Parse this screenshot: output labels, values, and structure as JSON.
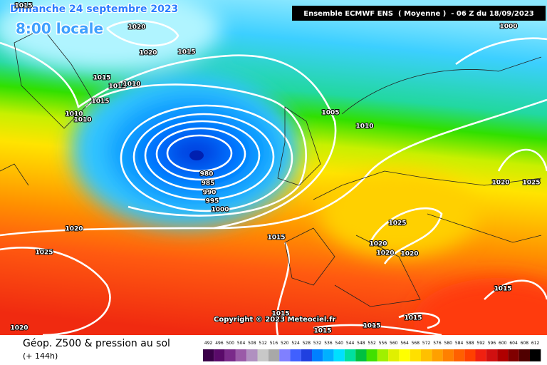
{
  "header": {
    "date": "Dimanche 24 septembre 2023",
    "time": "8:00 locale",
    "model": "Ensemble ECMWF ENS  ( Moyenne )  - 06 Z du 18/09/2023"
  },
  "copyright": "Copyright © 2023 Meteociel.fr",
  "footer": {
    "title": "Géop. Z500 & pression au sol",
    "lead": "(+ 144h)"
  },
  "scale": [
    492,
    496,
    500,
    504,
    508,
    512,
    516,
    520,
    524,
    528,
    532,
    536,
    540,
    544,
    548,
    552,
    556,
    560,
    564,
    568,
    572,
    576,
    580,
    584,
    588,
    592,
    596,
    600,
    604,
    608,
    612
  ],
  "isobar_labels": [
    1015,
    1020,
    1020,
    1015,
    1015,
    1015,
    1010,
    1015,
    1010,
    1010,
    1000,
    1005,
    1010,
    980,
    985,
    990,
    995,
    1000,
    1020,
    1025,
    1015,
    1025,
    1020,
    1020,
    1020,
    1020,
    1025,
    1015,
    1015,
    1015,
    1015,
    1015,
    1020
  ]
}
